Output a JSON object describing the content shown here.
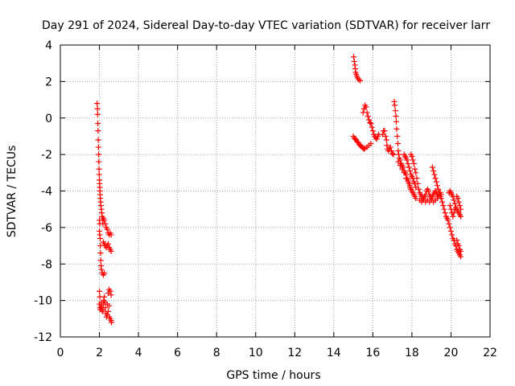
{
  "chart_data": {
    "type": "scatter",
    "title": "Day 291 of 2024, Sidereal Day-to-day VTEC variation (SDTVAR) for receiver larr",
    "xlabel": "GPS time / hours",
    "ylabel": "SDTVAR / TECUs",
    "xlim": [
      0,
      22
    ],
    "ylim": [
      -12,
      4
    ],
    "xticks": [
      0,
      2,
      4,
      6,
      8,
      10,
      12,
      14,
      16,
      18,
      20,
      22
    ],
    "yticks": [
      -12,
      -10,
      -8,
      -6,
      -4,
      -2,
      0,
      2,
      4
    ],
    "grid": true,
    "marker": "+",
    "series": [
      {
        "name": "SDTVAR",
        "color": "#ff0000",
        "points": [
          [
            1.88,
            0.8
          ],
          [
            1.9,
            0.5
          ],
          [
            1.91,
            0.2
          ],
          [
            1.92,
            -0.3
          ],
          [
            1.93,
            -0.7
          ],
          [
            1.94,
            -1.2
          ],
          [
            1.95,
            -1.6
          ],
          [
            1.96,
            -2.0
          ],
          [
            1.97,
            -2.4
          ],
          [
            1.98,
            -2.8
          ],
          [
            1.99,
            -3.1
          ],
          [
            2.0,
            -3.4
          ],
          [
            2.01,
            -3.6
          ],
          [
            2.02,
            -3.8
          ],
          [
            2.03,
            -4.0
          ],
          [
            2.04,
            -4.2
          ],
          [
            2.05,
            -4.4
          ],
          [
            2.06,
            -4.6
          ],
          [
            2.08,
            -4.8
          ],
          [
            2.1,
            -5.0
          ],
          [
            2.12,
            -5.2
          ],
          [
            2.14,
            -5.4
          ],
          [
            2.16,
            -5.6
          ],
          [
            2.18,
            -5.8
          ],
          [
            2.0,
            -5.6
          ],
          [
            2.02,
            -5.8
          ],
          [
            2.0,
            -6.2
          ],
          [
            2.02,
            -6.4
          ],
          [
            2.04,
            -6.6
          ],
          [
            2.05,
            -7.0
          ],
          [
            2.06,
            -7.4
          ],
          [
            2.07,
            -7.8
          ],
          [
            2.08,
            -8.1
          ],
          [
            2.1,
            -8.3
          ],
          [
            2.15,
            -8.5
          ],
          [
            2.2,
            -8.6
          ],
          [
            2.25,
            -8.5
          ],
          [
            2.2,
            -5.5
          ],
          [
            2.25,
            -5.6
          ],
          [
            2.3,
            -5.8
          ],
          [
            2.35,
            -6.0
          ],
          [
            2.4,
            -6.1
          ],
          [
            2.45,
            -6.3
          ],
          [
            2.5,
            -6.4
          ],
          [
            2.55,
            -6.3
          ],
          [
            2.2,
            -6.8
          ],
          [
            2.25,
            -6.9
          ],
          [
            2.3,
            -7.0
          ],
          [
            2.35,
            -7.1
          ],
          [
            2.4,
            -7.0
          ],
          [
            2.45,
            -6.9
          ],
          [
            2.5,
            -7.1
          ],
          [
            2.55,
            -7.2
          ],
          [
            2.6,
            -7.3
          ],
          [
            2.6,
            -6.4
          ],
          [
            2.0,
            -9.5
          ],
          [
            2.02,
            -9.8
          ],
          [
            2.0,
            -10.2
          ],
          [
            2.02,
            -10.4
          ],
          [
            2.05,
            -10.5
          ],
          [
            2.08,
            -10.3
          ],
          [
            2.1,
            -10.1
          ],
          [
            2.12,
            -10.4
          ],
          [
            2.15,
            -10.6
          ],
          [
            2.18,
            -10.5
          ],
          [
            2.2,
            -10.2
          ],
          [
            2.22,
            -10.0
          ],
          [
            2.25,
            -9.8
          ],
          [
            2.28,
            -10.1
          ],
          [
            2.3,
            -10.4
          ],
          [
            2.33,
            -10.7
          ],
          [
            2.36,
            -10.9
          ],
          [
            2.4,
            -10.8
          ],
          [
            2.45,
            -10.6
          ],
          [
            2.5,
            -10.9
          ],
          [
            2.55,
            -11.0
          ],
          [
            2.6,
            -11.1
          ],
          [
            2.62,
            -11.2
          ],
          [
            2.45,
            -9.6
          ],
          [
            2.5,
            -9.4
          ],
          [
            2.55,
            -9.5
          ],
          [
            2.6,
            -9.7
          ],
          [
            2.4,
            -10.2
          ],
          [
            2.5,
            -10.3
          ],
          [
            15.02,
            3.35
          ],
          [
            15.05,
            3.1
          ],
          [
            15.08,
            2.9
          ],
          [
            15.1,
            2.7
          ],
          [
            15.12,
            2.5
          ],
          [
            15.15,
            2.4
          ],
          [
            15.18,
            2.3
          ],
          [
            15.22,
            2.2
          ],
          [
            15.28,
            2.1
          ],
          [
            15.35,
            2.05
          ],
          [
            15.0,
            -1.0
          ],
          [
            15.05,
            -1.1
          ],
          [
            15.1,
            -1.15
          ],
          [
            15.15,
            -1.2
          ],
          [
            15.2,
            -1.3
          ],
          [
            15.25,
            -1.35
          ],
          [
            15.3,
            -1.45
          ],
          [
            15.35,
            -1.5
          ],
          [
            15.4,
            -1.55
          ],
          [
            15.45,
            -1.6
          ],
          [
            15.5,
            -1.65
          ],
          [
            15.55,
            -1.7
          ],
          [
            15.6,
            -1.65
          ],
          [
            15.7,
            -1.6
          ],
          [
            15.8,
            -1.5
          ],
          [
            15.9,
            -1.4
          ],
          [
            15.5,
            0.3
          ],
          [
            15.55,
            0.5
          ],
          [
            15.6,
            0.7
          ],
          [
            15.65,
            0.6
          ],
          [
            15.7,
            0.3
          ],
          [
            15.75,
            0.1
          ],
          [
            15.8,
            -0.1
          ],
          [
            15.85,
            -0.25
          ],
          [
            15.9,
            -0.3
          ],
          [
            15.95,
            -0.5
          ],
          [
            16.0,
            -0.7
          ],
          [
            16.05,
            -0.9
          ],
          [
            16.1,
            -1.0
          ],
          [
            16.15,
            -1.1
          ],
          [
            16.2,
            -1.15
          ],
          [
            16.25,
            -1.0
          ],
          [
            16.3,
            -0.9
          ],
          [
            16.5,
            -0.9
          ],
          [
            16.55,
            -0.7
          ],
          [
            16.6,
            -0.7
          ],
          [
            16.65,
            -1.0
          ],
          [
            16.7,
            -1.2
          ],
          [
            16.72,
            -1.5
          ],
          [
            16.75,
            -1.7
          ],
          [
            16.8,
            -1.8
          ],
          [
            16.85,
            -1.7
          ],
          [
            16.9,
            -1.6
          ],
          [
            16.95,
            -1.8
          ],
          [
            17.0,
            -1.95
          ],
          [
            17.05,
            -2.0
          ],
          [
            17.1,
            0.9
          ],
          [
            17.12,
            0.7
          ],
          [
            17.15,
            0.4
          ],
          [
            17.18,
            0.1
          ],
          [
            17.2,
            -0.2
          ],
          [
            17.22,
            -0.6
          ],
          [
            17.25,
            -1.0
          ],
          [
            17.28,
            -1.4
          ],
          [
            17.3,
            -1.8
          ],
          [
            17.32,
            -2.0
          ],
          [
            17.35,
            -2.2
          ],
          [
            17.4,
            -2.3
          ],
          [
            17.45,
            -2.5
          ],
          [
            17.5,
            -2.6
          ],
          [
            17.55,
            -2.7
          ],
          [
            17.6,
            -2.9
          ],
          [
            17.65,
            -3.0
          ],
          [
            17.7,
            -3.1
          ],
          [
            17.75,
            -3.3
          ],
          [
            17.8,
            -3.4
          ],
          [
            17.85,
            -3.6
          ],
          [
            17.9,
            -3.7
          ],
          [
            17.95,
            -3.9
          ],
          [
            18.0,
            -4.0
          ],
          [
            18.05,
            -4.1
          ],
          [
            18.1,
            -4.2
          ],
          [
            18.15,
            -4.3
          ],
          [
            18.2,
            -4.4
          ],
          [
            17.3,
            -2.4
          ],
          [
            17.4,
            -2.6
          ],
          [
            17.5,
            -2.8
          ],
          [
            17.6,
            -3.0
          ],
          [
            17.7,
            -3.3
          ],
          [
            17.8,
            -3.5
          ],
          [
            17.9,
            -3.8
          ],
          [
            17.6,
            -2.0
          ],
          [
            17.65,
            -2.1
          ],
          [
            17.7,
            -2.2
          ],
          [
            17.75,
            -2.3
          ],
          [
            17.8,
            -2.5
          ],
          [
            17.85,
            -2.7
          ],
          [
            17.9,
            -2.9
          ],
          [
            17.95,
            -3.1
          ],
          [
            18.0,
            -3.2
          ],
          [
            18.05,
            -3.3
          ],
          [
            18.1,
            -3.5
          ],
          [
            18.15,
            -3.6
          ],
          [
            18.2,
            -3.8
          ],
          [
            17.95,
            -2.0
          ],
          [
            18.0,
            -2.1
          ],
          [
            18.05,
            -2.3
          ],
          [
            18.1,
            -2.5
          ],
          [
            18.15,
            -2.8
          ],
          [
            18.2,
            -3.0
          ],
          [
            18.25,
            -3.3
          ],
          [
            18.3,
            -3.6
          ],
          [
            18.35,
            -3.9
          ],
          [
            18.4,
            -4.1
          ],
          [
            18.45,
            -4.2
          ],
          [
            18.5,
            -4.3
          ],
          [
            18.55,
            -4.4
          ],
          [
            18.6,
            -4.4
          ],
          [
            18.65,
            -4.3
          ],
          [
            18.7,
            -4.2
          ],
          [
            18.75,
            -4.0
          ],
          [
            18.8,
            -3.9
          ],
          [
            18.85,
            -4.0
          ],
          [
            18.9,
            -4.2
          ],
          [
            18.95,
            -4.3
          ],
          [
            19.0,
            -4.4
          ],
          [
            19.05,
            -4.3
          ],
          [
            19.1,
            -4.2
          ],
          [
            19.15,
            -4.1
          ],
          [
            19.2,
            -4.0
          ],
          [
            19.25,
            -4.1
          ],
          [
            19.3,
            -4.2
          ],
          [
            19.35,
            -4.3
          ],
          [
            19.4,
            -4.2
          ],
          [
            19.45,
            -4.1
          ],
          [
            19.5,
            -4.2
          ],
          [
            18.4,
            -4.5
          ],
          [
            18.5,
            -4.6
          ],
          [
            18.6,
            -4.5
          ],
          [
            18.7,
            -4.6
          ],
          [
            18.8,
            -4.5
          ],
          [
            18.9,
            -4.6
          ],
          [
            19.0,
            -4.5
          ],
          [
            19.1,
            -4.6
          ],
          [
            19.2,
            -4.5
          ],
          [
            19.3,
            -4.4
          ],
          [
            19.05,
            -2.7
          ],
          [
            19.1,
            -2.9
          ],
          [
            19.15,
            -3.1
          ],
          [
            19.2,
            -3.3
          ],
          [
            19.25,
            -3.5
          ],
          [
            19.3,
            -3.7
          ],
          [
            19.35,
            -3.9
          ],
          [
            19.4,
            -4.1
          ],
          [
            19.45,
            -4.3
          ],
          [
            19.5,
            -4.4
          ],
          [
            19.55,
            -4.6
          ],
          [
            19.6,
            -4.8
          ],
          [
            19.65,
            -5.0
          ],
          [
            19.7,
            -5.2
          ],
          [
            19.75,
            -5.4
          ],
          [
            19.8,
            -5.5
          ],
          [
            19.85,
            -5.6
          ],
          [
            19.9,
            -5.8
          ],
          [
            19.95,
            -6.0
          ],
          [
            20.0,
            -6.2
          ],
          [
            20.05,
            -6.4
          ],
          [
            20.1,
            -6.6
          ],
          [
            20.15,
            -6.7
          ],
          [
            20.2,
            -6.9
          ],
          [
            20.25,
            -7.0
          ],
          [
            20.3,
            -7.2
          ],
          [
            20.35,
            -7.3
          ],
          [
            20.4,
            -7.4
          ],
          [
            20.45,
            -7.5
          ],
          [
            20.5,
            -7.6
          ],
          [
            20.3,
            -6.7
          ],
          [
            20.35,
            -6.9
          ],
          [
            20.4,
            -7.0
          ],
          [
            20.45,
            -7.2
          ],
          [
            20.5,
            -7.3
          ],
          [
            19.9,
            -4.1
          ],
          [
            19.95,
            -4.0
          ],
          [
            20.0,
            -4.1
          ],
          [
            20.05,
            -4.2
          ],
          [
            20.1,
            -4.3
          ],
          [
            20.15,
            -4.5
          ],
          [
            20.2,
            -4.7
          ],
          [
            20.25,
            -4.9
          ],
          [
            20.3,
            -5.0
          ],
          [
            20.35,
            -5.1
          ],
          [
            20.4,
            -5.2
          ],
          [
            20.45,
            -5.3
          ],
          [
            20.5,
            -5.4
          ],
          [
            20.3,
            -4.3
          ],
          [
            20.35,
            -4.4
          ],
          [
            20.4,
            -4.6
          ],
          [
            20.45,
            -4.8
          ],
          [
            20.5,
            -5.0
          ],
          [
            19.95,
            -4.8
          ],
          [
            20.0,
            -5.0
          ],
          [
            20.05,
            -5.2
          ],
          [
            20.1,
            -5.4
          ],
          [
            20.15,
            -5.2
          ],
          [
            20.2,
            -5.0
          ]
        ]
      }
    ]
  }
}
